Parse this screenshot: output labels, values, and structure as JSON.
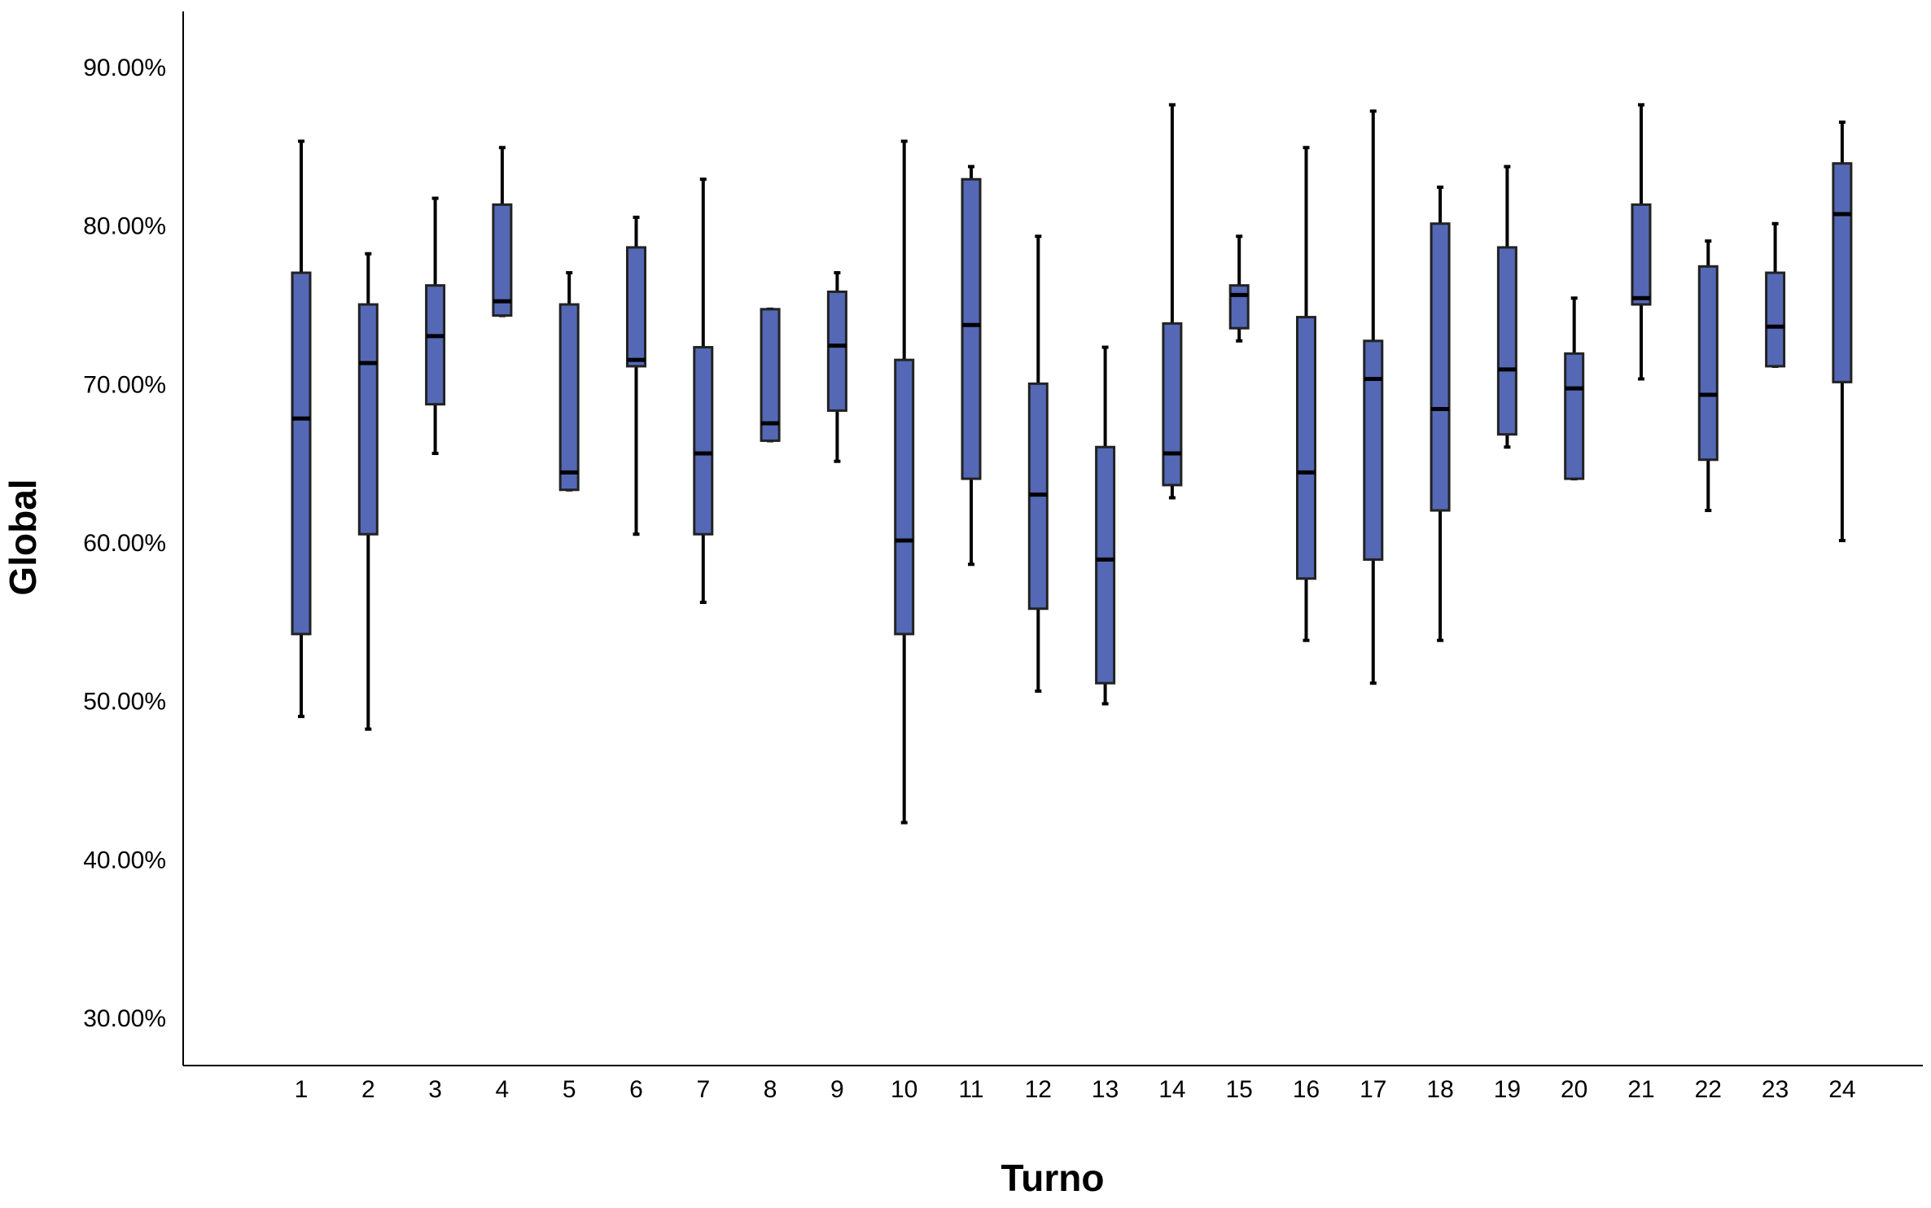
{
  "chart_data": {
    "type": "boxplot",
    "xlabel": "Turno",
    "ylabel": "Global",
    "ylim": [
      25,
      93
    ],
    "yticks": [
      30,
      40,
      50,
      60,
      70,
      80,
      90
    ],
    "ytick_labels": [
      "30.00%",
      "40.00%",
      "50.00%",
      "60.00%",
      "70.00%",
      "80.00%",
      "90.00%"
    ],
    "categories": [
      "1",
      "2",
      "3",
      "4",
      "5",
      "6",
      "7",
      "8",
      "9",
      "10",
      "11",
      "12",
      "13",
      "14",
      "15",
      "16",
      "17",
      "18",
      "19",
      "20",
      "21",
      "22",
      "23",
      "24"
    ],
    "box_color": "#5468b5",
    "boxes": [
      {
        "pos": 1,
        "min": 49.0,
        "q1": 54.2,
        "median": 67.8,
        "q3": 77.0,
        "max": 85.3
      },
      {
        "pos": 2,
        "min": 48.2,
        "q1": 60.5,
        "median": 71.3,
        "q3": 75.0,
        "max": 78.2
      },
      {
        "pos": 3,
        "min": 65.6,
        "q1": 68.7,
        "median": 73.0,
        "q3": 76.2,
        "max": 81.7
      },
      {
        "pos": 4,
        "min": 74.3,
        "q1": 74.3,
        "median": 75.2,
        "q3": 81.3,
        "max": 84.9
      },
      {
        "pos": 5,
        "min": 63.3,
        "q1": 63.3,
        "median": 64.4,
        "q3": 75.0,
        "max": 77.0
      },
      {
        "pos": 6,
        "min": 60.5,
        "q1": 71.1,
        "median": 71.5,
        "q3": 78.6,
        "max": 80.5
      },
      {
        "pos": 7,
        "min": 56.2,
        "q1": 60.5,
        "median": 65.6,
        "q3": 72.3,
        "max": 82.9
      },
      {
        "pos": 8,
        "min": 66.4,
        "q1": 66.4,
        "median": 67.5,
        "q3": 74.7,
        "max": 74.7
      },
      {
        "pos": 9,
        "min": 65.1,
        "q1": 68.3,
        "median": 72.4,
        "q3": 75.8,
        "max": 77.0
      },
      {
        "pos": 10,
        "min": 42.3,
        "q1": 54.2,
        "median": 60.1,
        "q3": 71.5,
        "max": 85.3
      },
      {
        "pos": 11,
        "min": 58.6,
        "q1": 64.0,
        "median": 73.7,
        "q3": 82.9,
        "max": 83.7
      },
      {
        "pos": 12,
        "min": 50.6,
        "q1": 55.8,
        "median": 63.0,
        "q3": 70.0,
        "max": 79.3
      },
      {
        "pos": 13,
        "min": 49.8,
        "q1": 51.1,
        "median": 58.9,
        "q3": 66.0,
        "max": 72.3
      },
      {
        "pos": 14,
        "min": 62.8,
        "q1": 63.6,
        "median": 65.6,
        "q3": 73.8,
        "max": 87.6
      },
      {
        "pos": 15,
        "min": 72.7,
        "q1": 73.5,
        "median": 75.6,
        "q3": 76.2,
        "max": 79.3
      },
      {
        "pos": 16,
        "min": 53.8,
        "q1": 57.7,
        "median": 64.4,
        "q3": 74.2,
        "max": 84.9
      },
      {
        "pos": 17,
        "min": 51.1,
        "q1": 58.9,
        "median": 70.3,
        "q3": 72.7,
        "max": 87.2
      },
      {
        "pos": 18,
        "min": 53.8,
        "q1": 62.0,
        "median": 68.4,
        "q3": 80.1,
        "max": 82.4
      },
      {
        "pos": 19,
        "min": 66.0,
        "q1": 66.8,
        "median": 70.9,
        "q3": 78.6,
        "max": 83.7
      },
      {
        "pos": 20,
        "min": 64.0,
        "q1": 64.0,
        "median": 69.7,
        "q3": 71.9,
        "max": 75.4
      },
      {
        "pos": 21,
        "min": 70.3,
        "q1": 75.0,
        "median": 75.4,
        "q3": 81.3,
        "max": 87.6
      },
      {
        "pos": 22,
        "min": 62.0,
        "q1": 65.2,
        "median": 69.3,
        "q3": 77.4,
        "max": 79.0
      },
      {
        "pos": 23,
        "min": 71.1,
        "q1": 71.1,
        "median": 73.6,
        "q3": 77.0,
        "max": 80.1
      },
      {
        "pos": 24,
        "min": 60.1,
        "q1": 70.1,
        "median": 80.7,
        "q3": 83.9,
        "max": 86.5
      }
    ]
  }
}
